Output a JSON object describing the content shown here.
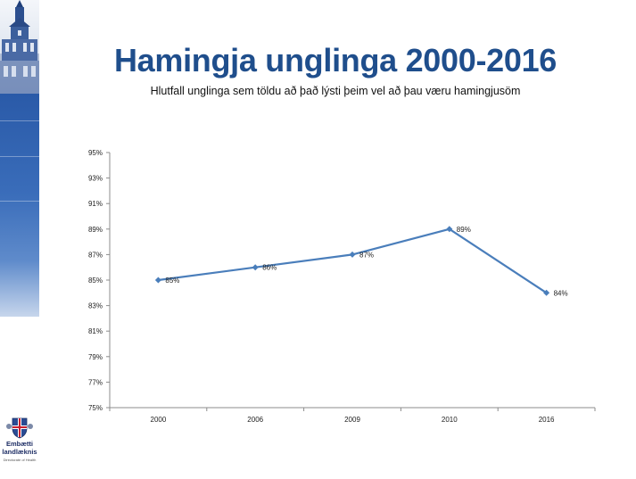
{
  "slide": {
    "title": "Hamingja unglinga 2000-2016",
    "subtitle": "Hlutfall unglinga sem töldu að það lýsti þeim vel að þau væru hamingjusöm"
  },
  "logo": {
    "name_line1": "Embætti",
    "name_line2": "landlæknis",
    "name_line3": "Directorate of Health"
  },
  "colors": {
    "title": "#1f4e8c",
    "series": "#4a7ebb",
    "sidebar_band": "#2a5aa8"
  },
  "chart_data": {
    "type": "line",
    "categories": [
      "2000",
      "2006",
      "2009",
      "2010",
      "2016"
    ],
    "series": [
      {
        "values": [
          85,
          86,
          87,
          89,
          84
        ],
        "labels": [
          "85%",
          "86%",
          "87%",
          "89%",
          "84%"
        ]
      }
    ],
    "yticks": [
      "95%",
      "93%",
      "91%",
      "89%",
      "87%",
      "85%",
      "83%",
      "81%",
      "79%",
      "77%",
      "75%"
    ],
    "ylim": [
      75,
      95
    ],
    "grid": false,
    "legend": "none"
  }
}
